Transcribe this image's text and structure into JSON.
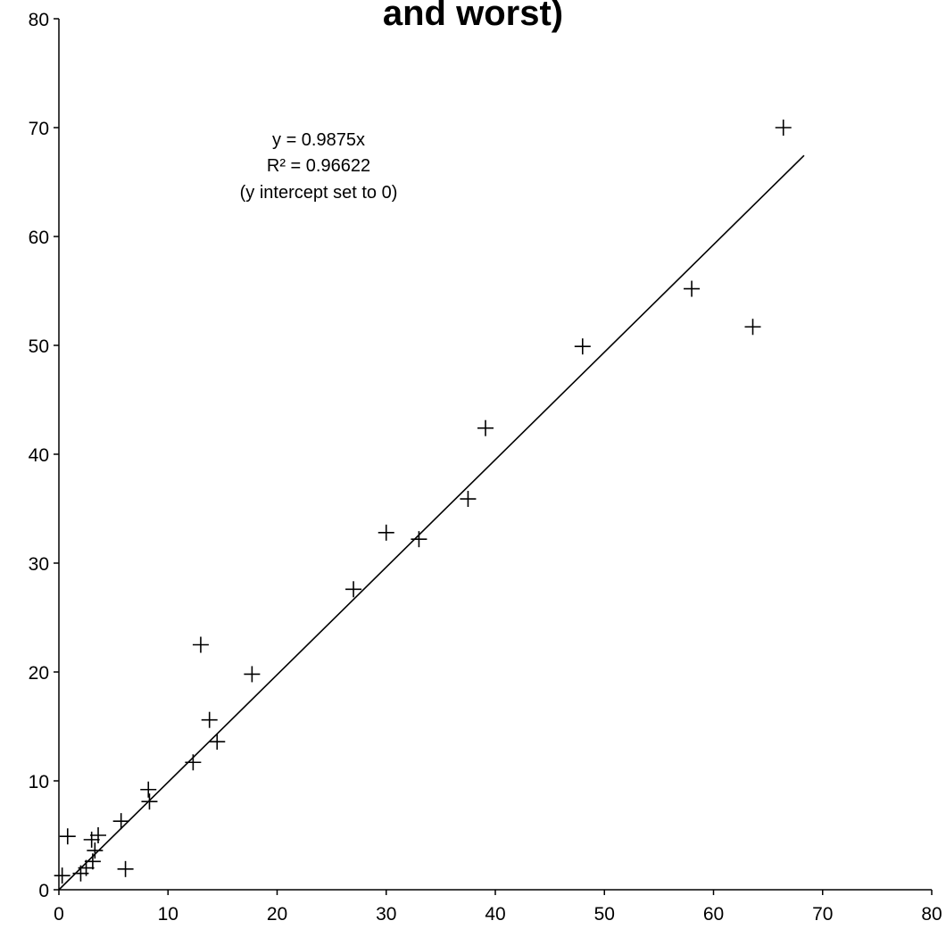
{
  "chart_data": {
    "type": "scatter",
    "title": "and worst)",
    "xlim": [
      0,
      80
    ],
    "ylim": [
      0,
      80
    ],
    "x_ticks": [
      0,
      10,
      20,
      30,
      40,
      50,
      60,
      70,
      80
    ],
    "y_ticks": [
      0,
      10,
      20,
      30,
      40,
      50,
      60,
      70,
      80
    ],
    "grid": false,
    "marker": "plus",
    "series": [
      {
        "points": [
          [
            0.3,
            1.3
          ],
          [
            0.8,
            4.9
          ],
          [
            2.0,
            1.5
          ],
          [
            2.5,
            2.0
          ],
          [
            3.0,
            4.6
          ],
          [
            3.1,
            2.6
          ],
          [
            3.3,
            3.6
          ],
          [
            3.6,
            5.0
          ],
          [
            5.7,
            6.3
          ],
          [
            6.1,
            1.9
          ],
          [
            8.2,
            9.2
          ],
          [
            8.3,
            8.1
          ],
          [
            12.3,
            11.7
          ],
          [
            13.0,
            22.5
          ],
          [
            13.8,
            15.6
          ],
          [
            14.5,
            13.6
          ],
          [
            17.7,
            19.8
          ],
          [
            27.0,
            27.6
          ],
          [
            30.0,
            32.8
          ],
          [
            33.0,
            32.2
          ],
          [
            37.5,
            35.9
          ],
          [
            39.1,
            42.4
          ],
          [
            48.0,
            49.9
          ],
          [
            58.0,
            55.2
          ],
          [
            63.6,
            51.7
          ],
          [
            66.4,
            70.0
          ]
        ]
      }
    ],
    "trendline": {
      "slope": 0.9875,
      "intercept": 0,
      "x_range": [
        0,
        68.3
      ]
    },
    "annotation": [
      "y = 0.9875x",
      "R² = 0.96622",
      "(y intercept set to 0)"
    ]
  }
}
